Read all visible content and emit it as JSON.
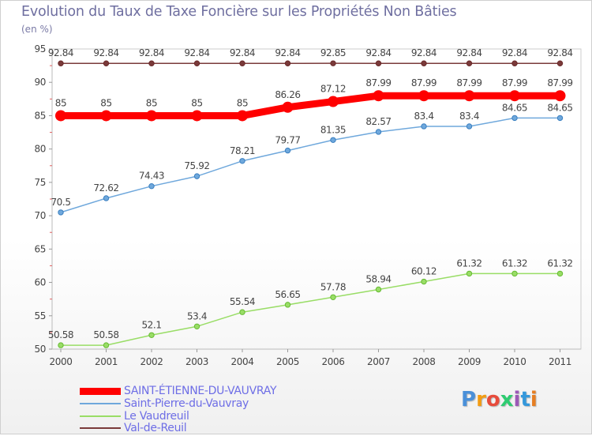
{
  "title": "Evolution du Taux de Taxe Foncière sur les Propriétés Non Bâties",
  "unit_label": "(en %)",
  "brand": {
    "text": "Proxiti",
    "letters": [
      "P",
      "r",
      "o",
      "x",
      "i",
      "t",
      "i"
    ],
    "colors": [
      "#4a90d9",
      "#f39c12",
      "#e74c3c",
      "#2ecc71",
      "#9b59b6",
      "#3498db",
      "#e67e22"
    ]
  },
  "chart_data": {
    "type": "line",
    "title": "Evolution du Taux de Taxe Foncière sur les Propriétés Non Bâties",
    "ylabel": "(en %)",
    "xlabel": "",
    "ylim": [
      50,
      95
    ],
    "y_ticks": [
      "50",
      "55",
      "60",
      "65",
      "70",
      "75",
      "80",
      "85",
      "90",
      "95"
    ],
    "y_tick_values": [
      50,
      55,
      60,
      65,
      70,
      75,
      80,
      85,
      90,
      95
    ],
    "categories": [
      "2000",
      "2001",
      "2002",
      "2003",
      "2004",
      "2005",
      "2006",
      "2007",
      "2008",
      "2009",
      "2010",
      "2011"
    ],
    "series": [
      {
        "name": "Val-de-Reuil",
        "color": "#7a3a3a",
        "values": [
          92.84,
          92.84,
          92.84,
          92.84,
          92.84,
          92.84,
          92.85,
          92.84,
          92.84,
          92.84,
          92.84,
          92.84
        ],
        "labels": [
          "92.84",
          "92.84",
          "92.84",
          "92.84",
          "92.84",
          "92.84",
          "92.85",
          "92.84",
          "92.84",
          "92.84",
          "92.84",
          "92.84"
        ]
      },
      {
        "name": "SAINT-ÉTIENNE-DU-VAUVRAY",
        "color": "#ff0000",
        "values": [
          85,
          85,
          85,
          85,
          85,
          86.26,
          87.12,
          87.99,
          87.99,
          87.99,
          87.99,
          87.99
        ],
        "labels": [
          "85",
          "85",
          "85",
          "85",
          "85",
          "86.26",
          "87.12",
          "87.99",
          "87.99",
          "87.99",
          "87.99",
          "87.99"
        ]
      },
      {
        "name": "Saint-Pierre-du-Vauvray",
        "color": "#6fa8dc",
        "values": [
          70.5,
          72.62,
          74.43,
          75.92,
          78.21,
          79.77,
          81.35,
          82.57,
          83.4,
          83.4,
          84.65,
          84.65
        ],
        "labels": [
          "70.5",
          "72.62",
          "74.43",
          "75.92",
          "78.21",
          "79.77",
          "81.35",
          "82.57",
          "83.4",
          "83.4",
          "84.65",
          "84.65"
        ]
      },
      {
        "name": "Le Vaudreuil",
        "color": "#99dd66",
        "values": [
          50.58,
          50.58,
          52.1,
          53.4,
          55.54,
          56.65,
          57.78,
          58.94,
          60.12,
          61.32,
          61.32,
          61.32
        ],
        "labels": [
          "50.58",
          "50.58",
          "52.1",
          "53.4",
          "55.54",
          "56.65",
          "57.78",
          "58.94",
          "60.12",
          "61.32",
          "61.32",
          "61.32"
        ]
      }
    ],
    "legend": [
      {
        "label": "SAINT-ÉTIENNE-DU-VAUVRAY",
        "color": "#ff0000"
      },
      {
        "label": "Saint-Pierre-du-Vauvray",
        "color": "#6fa8dc"
      },
      {
        "label": "Le Vaudreuil",
        "color": "#99dd66"
      },
      {
        "label": "Val-de-Reuil",
        "color": "#7a3a3a"
      }
    ]
  }
}
